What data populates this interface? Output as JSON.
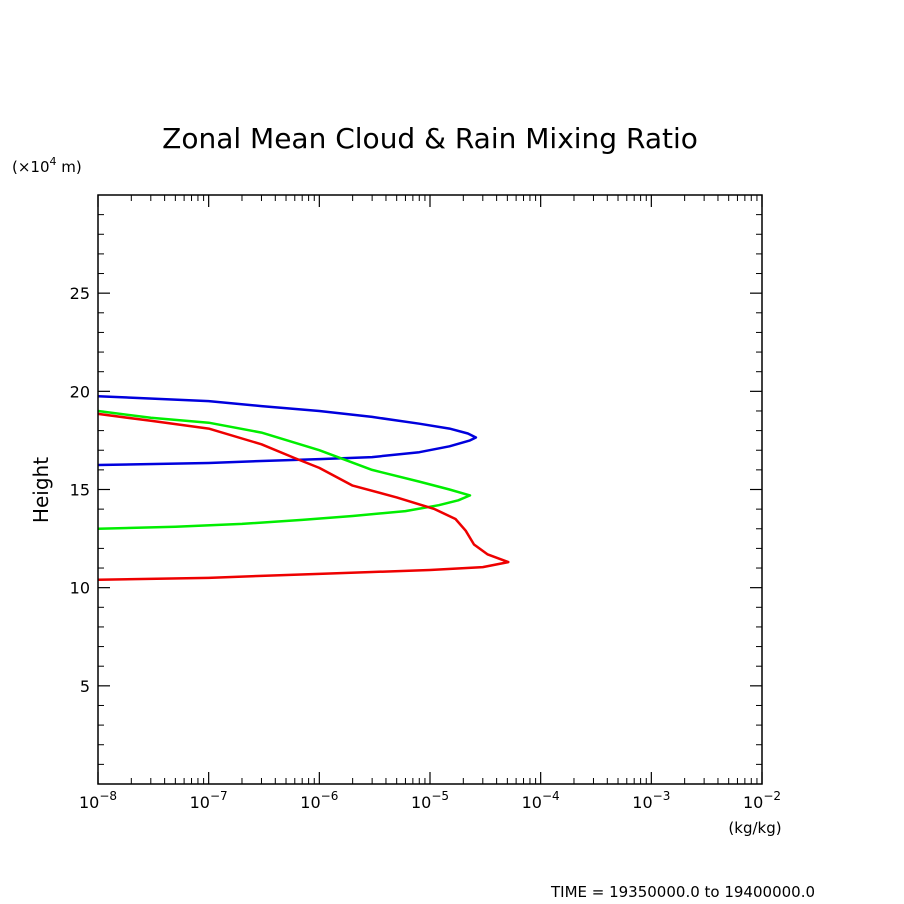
{
  "chart_data": {
    "type": "line",
    "title": "Zonal Mean Cloud & Rain Mixing Ratio",
    "ylabel": "Height",
    "yunit_prefix": "(×10",
    "yunit_exp": "4",
    "yunit_suffix": " m)",
    "xunit": "(kg/kg)",
    "footer": "TIME = 19350000.0 to 19400000.0",
    "xscale": "log",
    "xlim": [
      1e-08,
      0.01
    ],
    "ylim": [
      0,
      30
    ],
    "x_ticks": [
      {
        "base": "10",
        "exp": "−8"
      },
      {
        "base": "10",
        "exp": "−7"
      },
      {
        "base": "10",
        "exp": "−6"
      },
      {
        "base": "10",
        "exp": "−5"
      },
      {
        "base": "10",
        "exp": "−4"
      },
      {
        "base": "10",
        "exp": "−3"
      },
      {
        "base": "10",
        "exp": "−2"
      }
    ],
    "y_ticks": [
      5,
      10,
      15,
      20,
      25
    ],
    "y_tick_labels": [
      "5",
      "10",
      "15",
      "20",
      "25"
    ],
    "grid": false,
    "series": [
      {
        "color": "#0000dd",
        "x": [
          1e-08,
          1e-07,
          3e-07,
          1e-06,
          3e-06,
          8e-06,
          1.5e-05,
          2.2e-05,
          2.6e-05,
          2.3e-05,
          1.5e-05,
          8e-06,
          3e-06,
          1e-06,
          3e-07,
          1e-07,
          1e-08
        ],
        "y": [
          19.75,
          19.5,
          19.25,
          19.0,
          18.7,
          18.35,
          18.1,
          17.85,
          17.65,
          17.5,
          17.2,
          16.9,
          16.65,
          16.55,
          16.45,
          16.35,
          16.25
        ]
      },
      {
        "color": "#00ee00",
        "x": [
          1e-08,
          3e-08,
          1e-07,
          3e-07,
          1e-06,
          3e-06,
          8e-06,
          1.5e-05,
          2.3e-05,
          1.8e-05,
          1.2e-05,
          6e-06,
          2e-06,
          7e-07,
          2e-07,
          5e-08,
          1e-08
        ],
        "y": [
          19.0,
          18.65,
          18.4,
          17.9,
          17.0,
          16.0,
          15.4,
          15.0,
          14.7,
          14.45,
          14.2,
          13.9,
          13.65,
          13.45,
          13.25,
          13.1,
          13.0
        ]
      },
      {
        "color": "#ee0000",
        "x": [
          1e-08,
          3e-08,
          1e-07,
          3e-07,
          6e-07,
          1e-06,
          2e-06,
          5e-06,
          1.1e-05,
          1.7e-05,
          2.1e-05,
          2.5e-05,
          3.3e-05,
          5.1e-05,
          3e-05,
          1e-05,
          3e-06,
          1e-06,
          3e-07,
          1e-07,
          1e-08
        ],
        "y": [
          18.85,
          18.5,
          18.1,
          17.3,
          16.6,
          16.1,
          15.2,
          14.6,
          14.0,
          13.5,
          12.9,
          12.2,
          11.7,
          11.3,
          11.05,
          10.9,
          10.8,
          10.7,
          10.6,
          10.5,
          10.4
        ]
      }
    ]
  }
}
